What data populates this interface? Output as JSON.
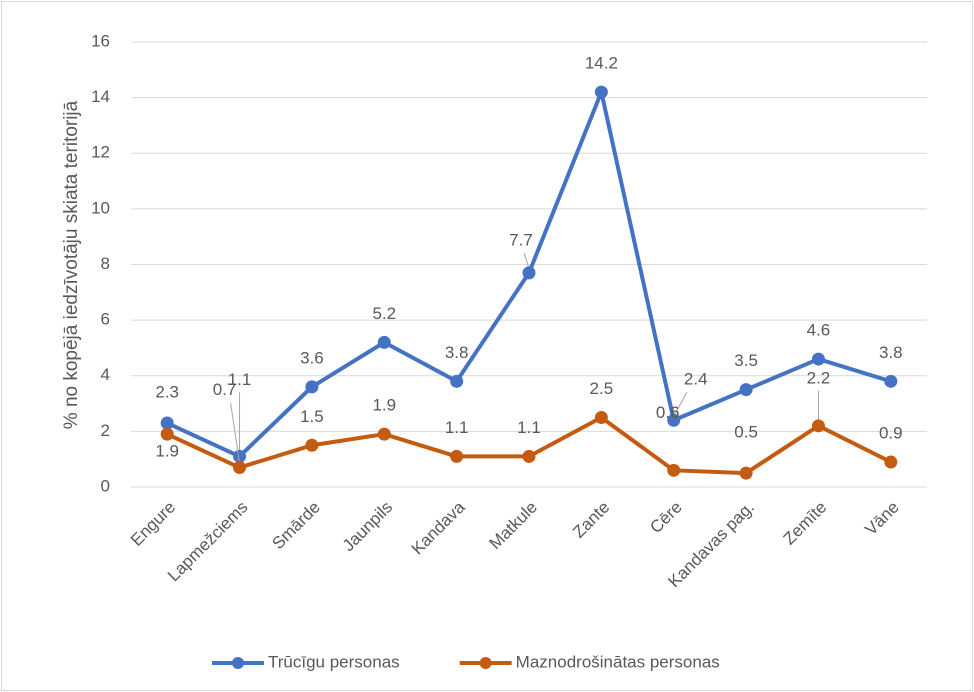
{
  "chart_data": {
    "type": "line",
    "y_label": "% no kopējā iedzīvotāju skiata teritorijā",
    "categories": [
      "Engure",
      "Lapmežciems",
      "Smārde",
      "Jaunpils",
      "Kandava",
      "Matkule",
      "Zante",
      "Cēre",
      "Kandavas pag.",
      "Zemīte",
      "Vāne"
    ],
    "series": [
      {
        "name": "Trūcīgu personas",
        "color": "#4472c4",
        "values": [
          2.3,
          1.1,
          3.6,
          5.2,
          3.8,
          7.7,
          14.2,
          2.4,
          3.5,
          4.6,
          3.8
        ]
      },
      {
        "name": "Maznodrošinātas personas",
        "color": "#c55a11",
        "values": [
          1.9,
          0.7,
          1.5,
          1.9,
          1.1,
          1.1,
          2.5,
          0.6,
          0.5,
          2.2,
          0.9
        ]
      }
    ],
    "ylim": [
      0,
      16
    ],
    "yticks": [
      0,
      2,
      4,
      6,
      8,
      10,
      12,
      14,
      16
    ],
    "grid": true,
    "legend": "bottom"
  }
}
